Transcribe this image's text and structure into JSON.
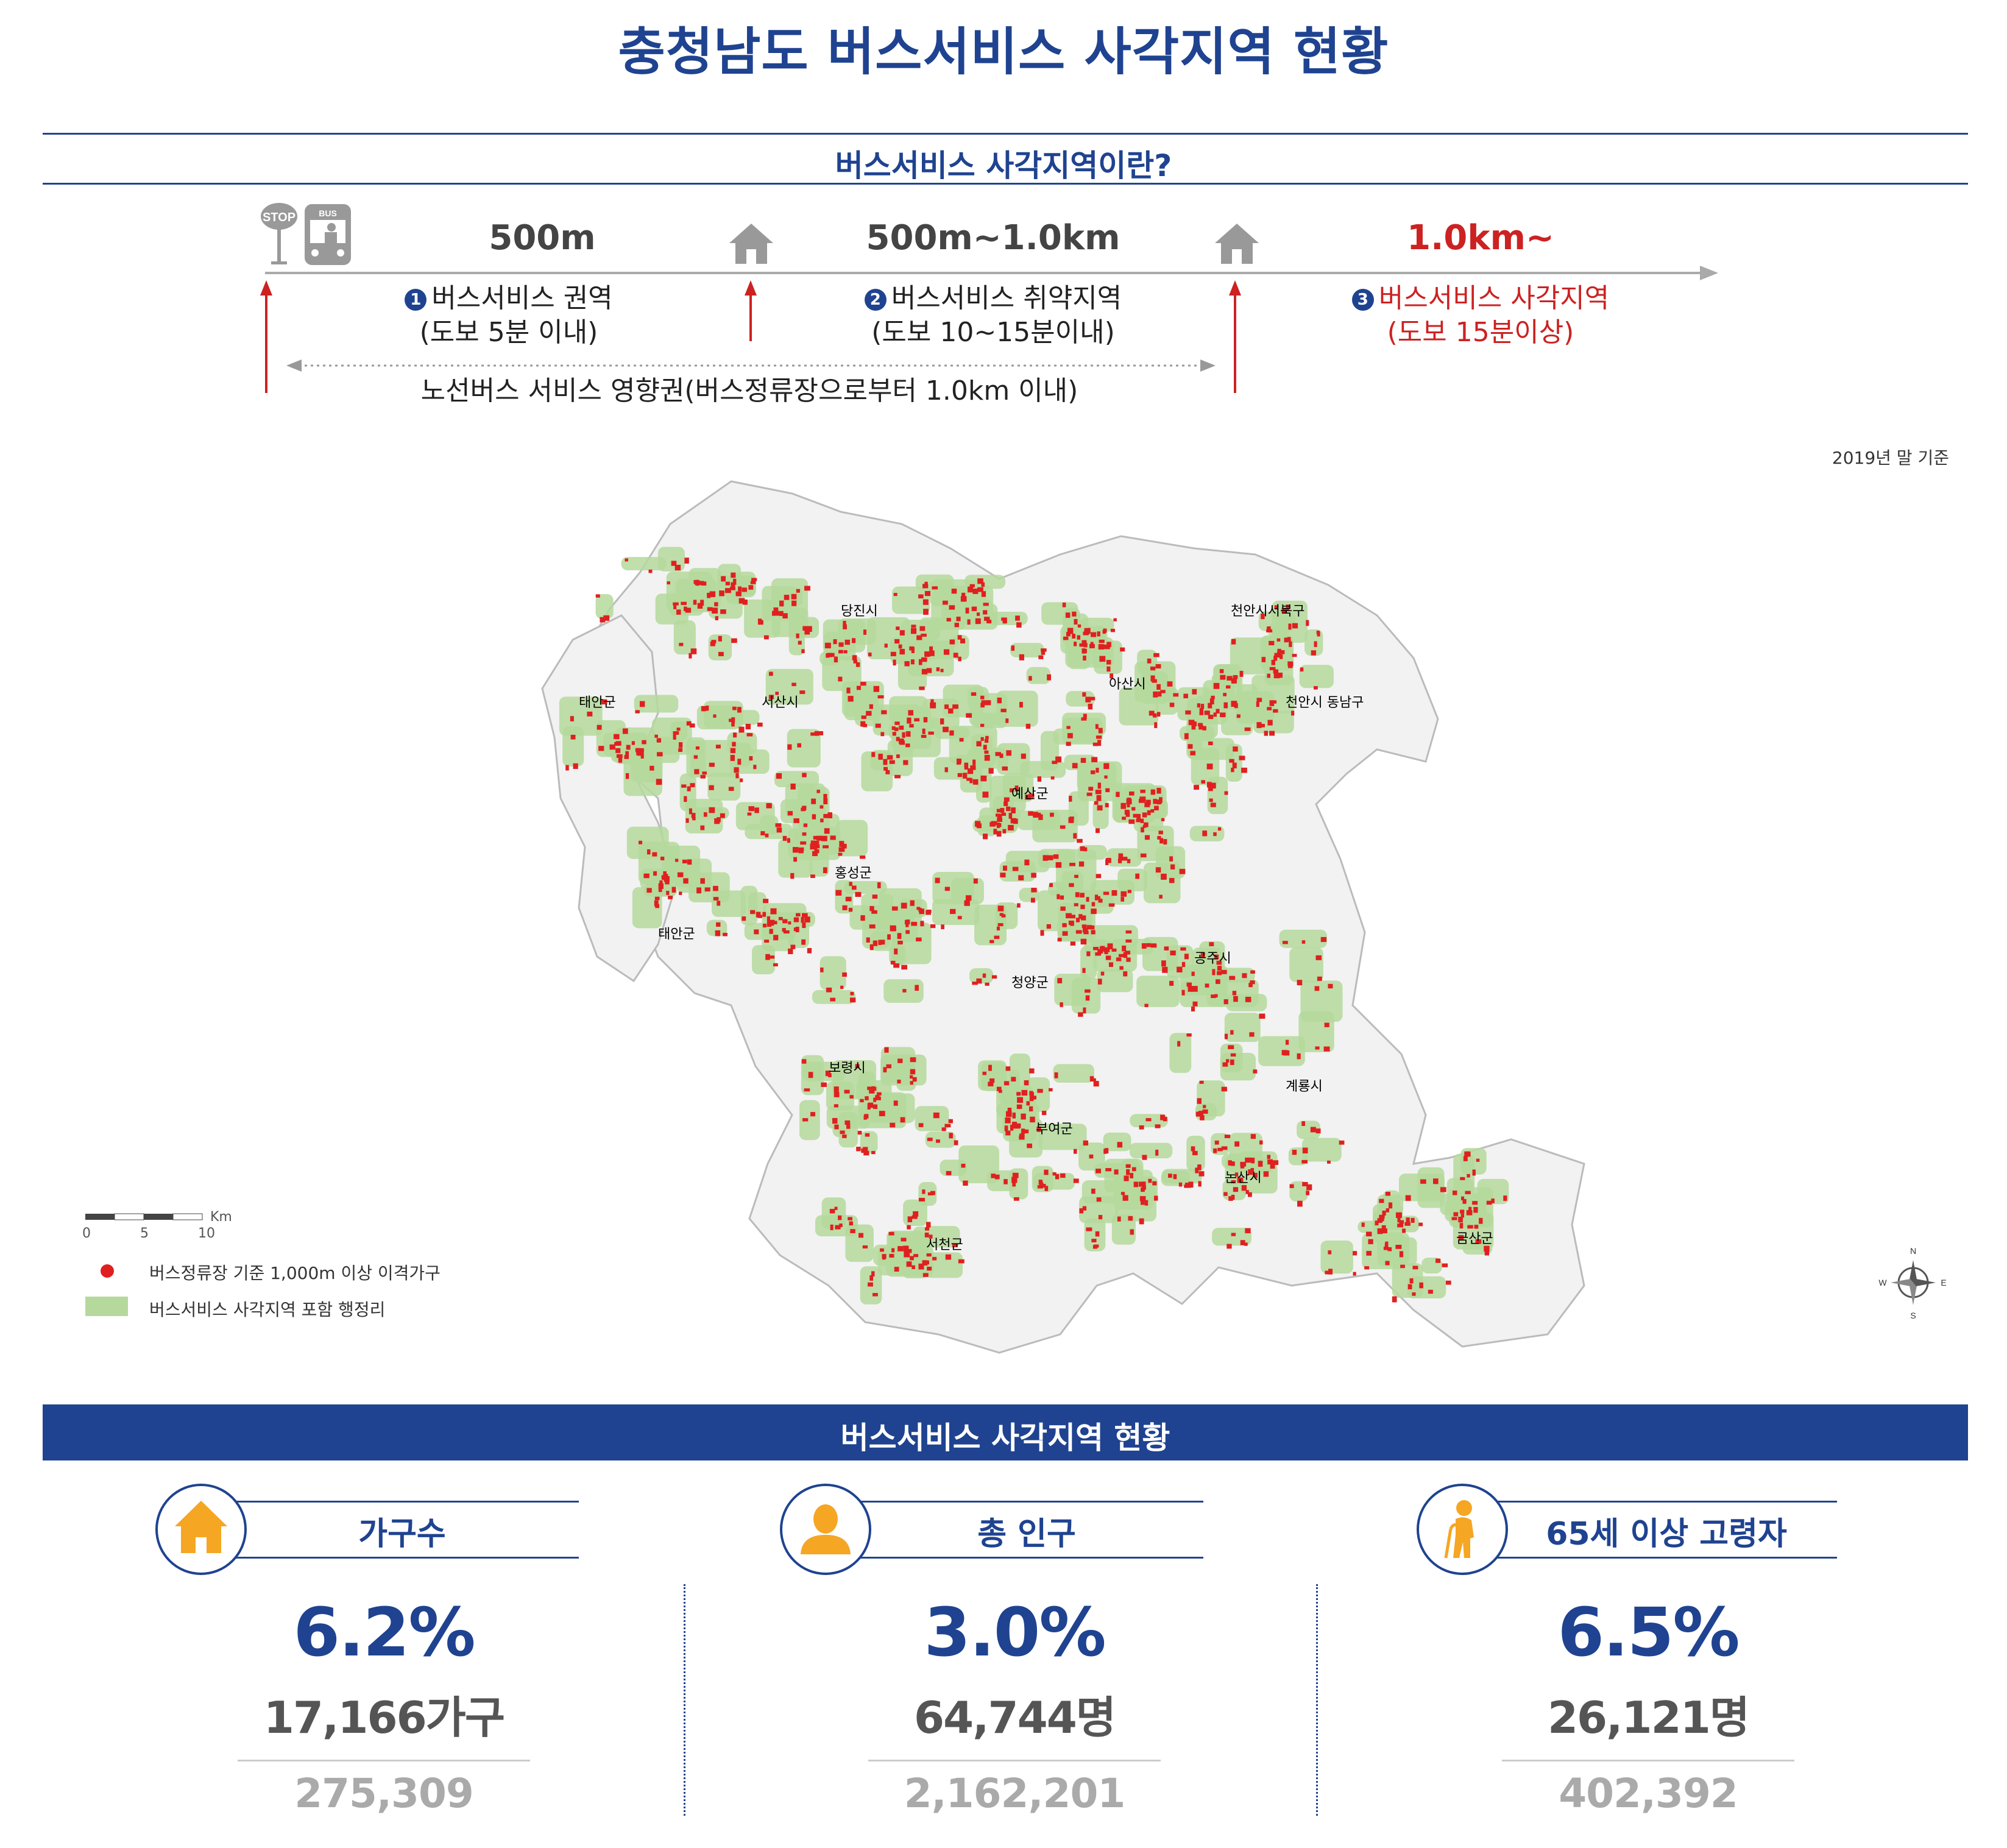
{
  "title": "충청남도 버스서비스 사각지역 현황",
  "definition": {
    "heading": "버스서비스 사각지역이란?",
    "stop_sign_text": "STOP",
    "bus_sign_text": "BUS",
    "distances": [
      "500m",
      "500m~1.0km",
      "1.0km~"
    ],
    "zones": [
      {
        "num": "1",
        "name": "버스서비스 권역",
        "walk": "(도보 5분 이내)"
      },
      {
        "num": "2",
        "name": "버스서비스 취약지역",
        "walk": "(도보 10~15분이내)"
      },
      {
        "num": "3",
        "name": "버스서비스 사각지역",
        "walk": "(도보 15분이상)"
      }
    ],
    "influence": "노선버스 서비스 영향권(버스정류장으로부터 1.0km 이내)",
    "colors": {
      "primary": "#1f4390",
      "red": "#cc2222",
      "arrow_gray": "#aaaaaa"
    }
  },
  "map": {
    "basis": "2019년 말 기준",
    "regions": [
      "당진시",
      "서산시",
      "태안군",
      "아산시",
      "천안시서북구",
      "천안시 동남구",
      "예산군",
      "홍성군",
      "태안군",
      "공주시",
      "청양군",
      "보령시",
      "부여군",
      "계룡시",
      "논산시",
      "서천군",
      "금산군"
    ],
    "scale": {
      "unit": "Km",
      "ticks": [
        "0",
        "5",
        "10"
      ]
    },
    "compass": {
      "n": "N",
      "s": "S",
      "e": "E",
      "w": "W"
    },
    "legend": [
      {
        "label": "버스정류장 기준 1,000m 이상 이격가구",
        "color": "#e02020"
      },
      {
        "label": "버스서비스 사각지역 포함 행정리",
        "color": "#b5d99c"
      }
    ]
  },
  "status": {
    "heading": "버스서비스 사각지역 현황",
    "stats": [
      {
        "icon": "house-icon",
        "label": "가구수",
        "percent": "6.2%",
        "count": "17,166가구",
        "total": "275,309"
      },
      {
        "icon": "person-icon",
        "label": "총 인구",
        "percent": "3.0%",
        "count": "64,744명",
        "total": "2,162,201"
      },
      {
        "icon": "elderly-icon",
        "label": "65세 이상 고령자",
        "percent": "6.5%",
        "count": "26,121명",
        "total": "402,392"
      }
    ],
    "icon_color": "#f5a623"
  }
}
